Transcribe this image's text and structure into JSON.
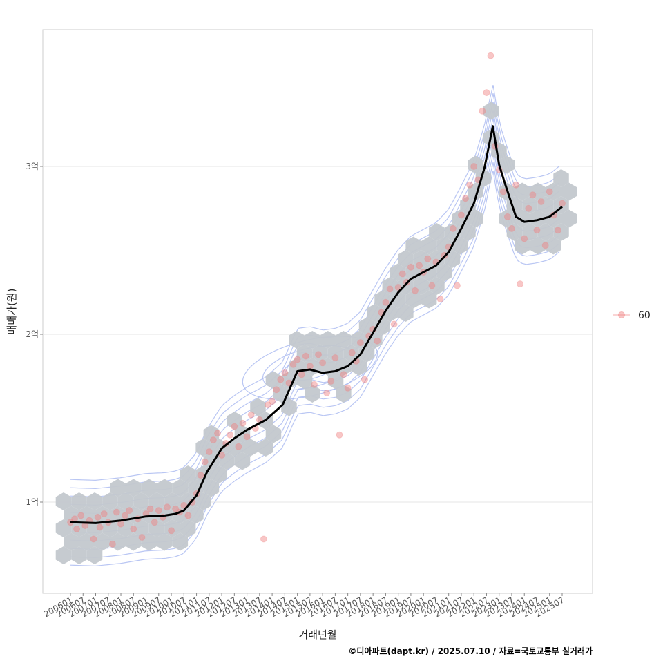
{
  "chart_data": {
    "type": "scatter",
    "title": "",
    "xlabel": "거래년월",
    "ylabel": "매매가(원)",
    "caption": "©디아파트(dapt.kr) / 2025.07.10 / 자료=국토교통부 실거래가",
    "x_tick_labels": [
      "200601",
      "200607",
      "200701",
      "200707",
      "200801",
      "200807",
      "200901",
      "200907",
      "201001",
      "201007",
      "201101",
      "201107",
      "201201",
      "201207",
      "201301",
      "201307",
      "201401",
      "201407",
      "201501",
      "201507",
      "201601",
      "201607",
      "201701",
      "201707",
      "201801",
      "201807",
      "201901",
      "201907",
      "202001",
      "202007",
      "202101",
      "202107",
      "202201",
      "202207",
      "202301",
      "202307",
      "202401",
      "202407",
      "202501",
      "202507"
    ],
    "xlim": [
      "200601",
      "202507"
    ],
    "y_ticks": [
      100000000,
      200000000,
      300000000
    ],
    "y_tick_labels": [
      "1억",
      "2억",
      "3억"
    ],
    "ylim": [
      50000000,
      390000000
    ],
    "grid": true,
    "legend": {
      "position": "right",
      "entries": [
        {
          "label": "60",
          "color": "#f08080"
        }
      ]
    },
    "colors": {
      "points": "#f08080",
      "hexbin": "#c3c8cd",
      "contour": "#a8b8f0",
      "trend": "#000000"
    },
    "trend_line": {
      "x": [
        "2006-01",
        "2007-01",
        "2008-01",
        "2009-01",
        "2009-10",
        "2010-03",
        "2010-07",
        "2011-01",
        "2011-06",
        "2012-01",
        "2012-07",
        "2013-01",
        "2013-10",
        "2014-06",
        "2015-01",
        "2015-07",
        "2016-01",
        "2016-07",
        "2017-01",
        "2017-07",
        "2018-01",
        "2018-07",
        "2019-01",
        "2019-07",
        "2020-01",
        "2020-07",
        "2021-01",
        "2021-07",
        "2022-01",
        "2022-06",
        "2022-10",
        "2023-01",
        "2023-04",
        "2023-09",
        "2024-01",
        "2024-07",
        "2025-01",
        "2025-07"
      ],
      "y": [
        88000000,
        87500000,
        89000000,
        91500000,
        92000000,
        93000000,
        95000000,
        104000000,
        118000000,
        132000000,
        138000000,
        143000000,
        149000000,
        158000000,
        178000000,
        179000000,
        177000000,
        178000000,
        181000000,
        188000000,
        201000000,
        214000000,
        225000000,
        233000000,
        237000000,
        241000000,
        249000000,
        263000000,
        278000000,
        299000000,
        324000000,
        301000000,
        289000000,
        270000000,
        267000000,
        268000000,
        270000000,
        276000000
      ]
    },
    "contour_center": [
      "2015-07",
      180000000
    ],
    "hexbin_density": "dense along the trend line",
    "points": [
      [
        "2006-01",
        88000000
      ],
      [
        "2006-03",
        90000000
      ],
      [
        "2006-04",
        84000000
      ],
      [
        "2006-06",
        92000000
      ],
      [
        "2006-08",
        86000000
      ],
      [
        "2006-10",
        89000000
      ],
      [
        "2006-12",
        78000000
      ],
      [
        "2007-02",
        91000000
      ],
      [
        "2007-03",
        85000000
      ],
      [
        "2007-05",
        93000000
      ],
      [
        "2007-07",
        88000000
      ],
      [
        "2007-09",
        75000000
      ],
      [
        "2007-11",
        94000000
      ],
      [
        "2008-01",
        87000000
      ],
      [
        "2008-03",
        92000000
      ],
      [
        "2008-05",
        95000000
      ],
      [
        "2008-07",
        84000000
      ],
      [
        "2008-09",
        90000000
      ],
      [
        "2008-11",
        79000000
      ],
      [
        "2009-01",
        93000000
      ],
      [
        "2009-03",
        96000000
      ],
      [
        "2009-05",
        88000000
      ],
      [
        "2009-07",
        95000000
      ],
      [
        "2009-09",
        91000000
      ],
      [
        "2009-11",
        97000000
      ],
      [
        "2010-01",
        83000000
      ],
      [
        "2010-03",
        96000000
      ],
      [
        "2010-05",
        94000000
      ],
      [
        "2010-07",
        98000000
      ],
      [
        "2010-09",
        92000000
      ],
      [
        "2010-11",
        100000000
      ],
      [
        "2011-01",
        105000000
      ],
      [
        "2011-03",
        116000000
      ],
      [
        "2011-05",
        124000000
      ],
      [
        "2011-07",
        130000000
      ],
      [
        "2011-09",
        137000000
      ],
      [
        "2011-11",
        141000000
      ],
      [
        "2012-01",
        128000000
      ],
      [
        "2012-03",
        135000000
      ],
      [
        "2012-05",
        140000000
      ],
      [
        "2012-07",
        145000000
      ],
      [
        "2012-09",
        133000000
      ],
      [
        "2012-11",
        147000000
      ],
      [
        "2013-01",
        139000000
      ],
      [
        "2013-03",
        152000000
      ],
      [
        "2013-05",
        144000000
      ],
      [
        "2013-07",
        149000000
      ],
      [
        "2013-09",
        78000000
      ],
      [
        "2013-11",
        158000000
      ],
      [
        "2014-01",
        160000000
      ],
      [
        "2014-03",
        167000000
      ],
      [
        "2014-05",
        173000000
      ],
      [
        "2014-07",
        177000000
      ],
      [
        "2014-09",
        171000000
      ],
      [
        "2014-11",
        182000000
      ],
      [
        "2015-01",
        185000000
      ],
      [
        "2015-03",
        176000000
      ],
      [
        "2015-05",
        187000000
      ],
      [
        "2015-07",
        181000000
      ],
      [
        "2015-09",
        170000000
      ],
      [
        "2015-11",
        188000000
      ],
      [
        "2016-01",
        183000000
      ],
      [
        "2016-03",
        165000000
      ],
      [
        "2016-05",
        172000000
      ],
      [
        "2016-07",
        186000000
      ],
      [
        "2016-09",
        140000000
      ],
      [
        "2016-11",
        176000000
      ],
      [
        "2017-01",
        168000000
      ],
      [
        "2017-03",
        189000000
      ],
      [
        "2017-05",
        184000000
      ],
      [
        "2017-07",
        195000000
      ],
      [
        "2017-09",
        173000000
      ],
      [
        "2017-11",
        199000000
      ],
      [
        "2018-01",
        203000000
      ],
      [
        "2018-03",
        196000000
      ],
      [
        "2018-05",
        213000000
      ],
      [
        "2018-07",
        219000000
      ],
      [
        "2018-09",
        227000000
      ],
      [
        "2018-11",
        206000000
      ],
      [
        "2019-01",
        228000000
      ],
      [
        "2019-03",
        236000000
      ],
      [
        "2019-05",
        231000000
      ],
      [
        "2019-07",
        240000000
      ],
      [
        "2019-09",
        226000000
      ],
      [
        "2019-11",
        241000000
      ],
      [
        "2020-01",
        237000000
      ],
      [
        "2020-03",
        245000000
      ],
      [
        "2020-05",
        229000000
      ],
      [
        "2020-07",
        243000000
      ],
      [
        "2020-09",
        221000000
      ],
      [
        "2020-11",
        247000000
      ],
      [
        "2021-01",
        252000000
      ],
      [
        "2021-03",
        263000000
      ],
      [
        "2021-05",
        229000000
      ],
      [
        "2021-07",
        271000000
      ],
      [
        "2021-09",
        281000000
      ],
      [
        "2021-11",
        289000000
      ],
      [
        "2022-01",
        300000000
      ],
      [
        "2022-03",
        292000000
      ],
      [
        "2022-05",
        333000000
      ],
      [
        "2022-07",
        344000000
      ],
      [
        "2022-09",
        366000000
      ],
      [
        "2022-11",
        312000000
      ],
      [
        "2023-01",
        298000000
      ],
      [
        "2023-03",
        285000000
      ],
      [
        "2023-05",
        270000000
      ],
      [
        "2023-07",
        263000000
      ],
      [
        "2023-09",
        289000000
      ],
      [
        "2023-11",
        230000000
      ],
      [
        "2024-01",
        257000000
      ],
      [
        "2024-03",
        275000000
      ],
      [
        "2024-05",
        283000000
      ],
      [
        "2024-07",
        262000000
      ],
      [
        "2024-09",
        279000000
      ],
      [
        "2024-11",
        253000000
      ],
      [
        "2025-01",
        285000000
      ],
      [
        "2025-03",
        271000000
      ],
      [
        "2025-05",
        262000000
      ],
      [
        "2025-07",
        278000000
      ]
    ]
  }
}
